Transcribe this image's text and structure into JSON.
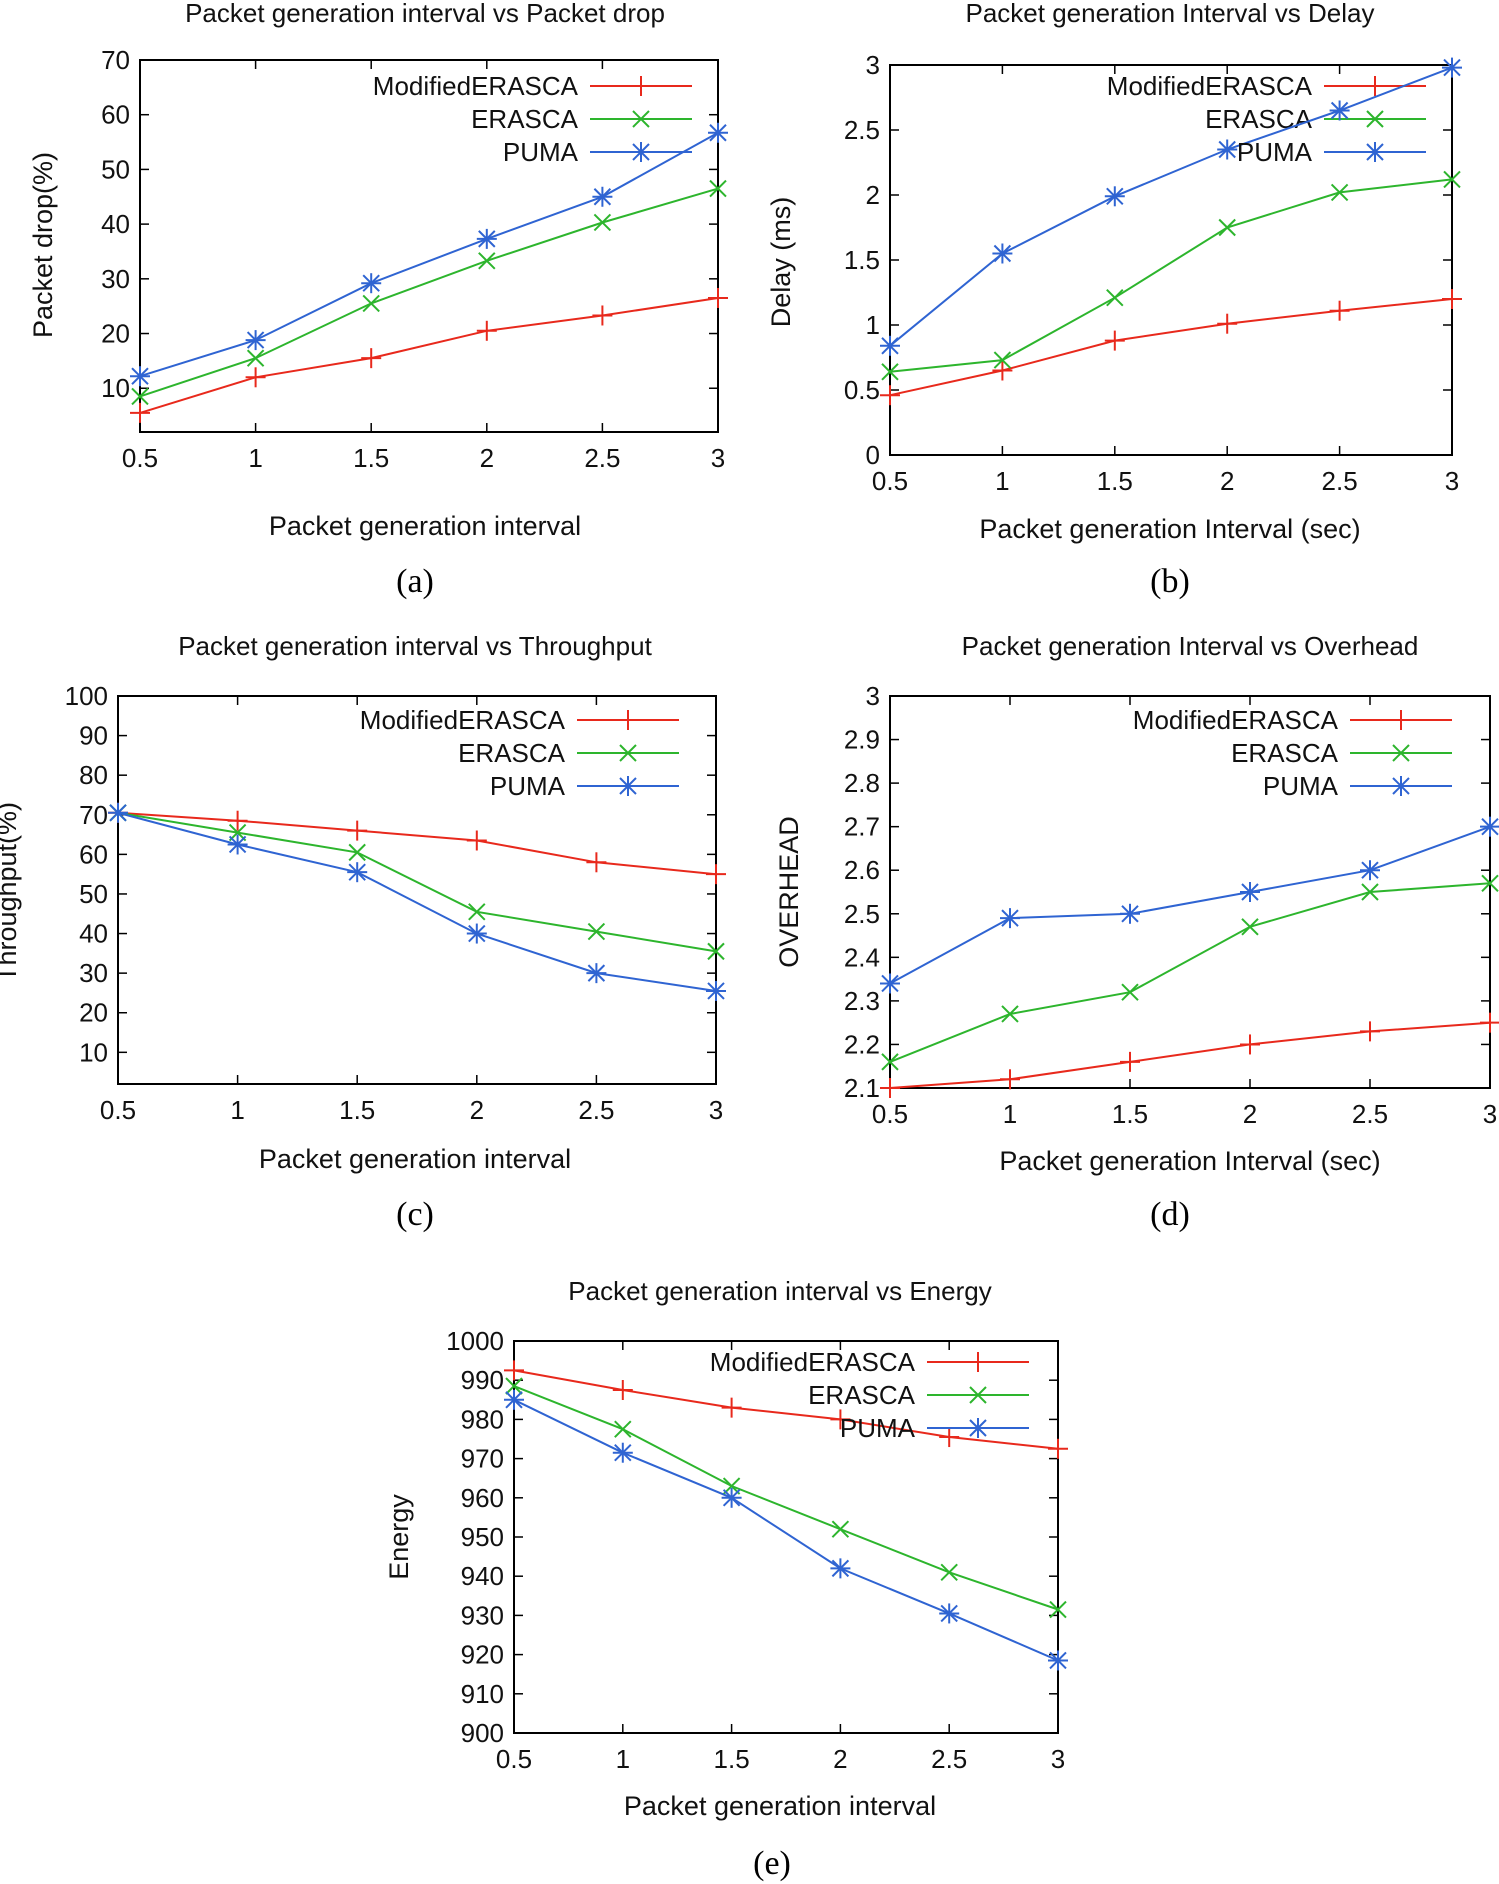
{
  "colors": {
    "ModifiedERASCA": "#e8291c",
    "ERASCA": "#2db52d",
    "PUMA": "#2f64d2"
  },
  "chart_data": [
    {
      "type": "line",
      "caption": "(a)",
      "title": "Packet generation interval vs Packet drop",
      "xlabel": "Packet generation interval",
      "ylabel": "Packet drop(%)",
      "xlim": [
        0.5,
        3
      ],
      "ylim": [
        2,
        70
      ],
      "xticks": [
        "0.5",
        "1",
        "1.5",
        "2",
        "2.5",
        "3"
      ],
      "yticks": [
        "10",
        "20",
        "30",
        "40",
        "50",
        "60",
        "70"
      ],
      "x": [
        0.5,
        1,
        1.5,
        2,
        2.5,
        3
      ],
      "series": [
        {
          "name": "ModifiedERASCA",
          "marker": "plus",
          "values": [
            5.5,
            12,
            15.5,
            20.5,
            23.3,
            26.5
          ]
        },
        {
          "name": "ERASCA",
          "marker": "x",
          "values": [
            8.5,
            15.5,
            25.5,
            33.3,
            40.3,
            46.5
          ]
        },
        {
          "name": "PUMA",
          "marker": "star",
          "values": [
            12.2,
            18.8,
            29.2,
            37.3,
            45,
            56.7
          ]
        }
      ]
    },
    {
      "type": "line",
      "caption": "(b)",
      "title": "Packet generation Interval vs Delay",
      "xlabel": "Packet generation Interval (sec)",
      "ylabel": "Delay (ms)",
      "xlim": [
        0.5,
        3
      ],
      "ylim": [
        0,
        3
      ],
      "xticks": [
        "0.5",
        "1",
        "1.5",
        "2",
        "2.5",
        "3"
      ],
      "yticks": [
        "0",
        "0.5",
        "1",
        "1.5",
        "2",
        "2.5",
        "3"
      ],
      "x": [
        0.5,
        1,
        1.5,
        2,
        2.5,
        3
      ],
      "series": [
        {
          "name": "ModifiedERASCA",
          "marker": "plus",
          "values": [
            0.46,
            0.65,
            0.88,
            1.01,
            1.11,
            1.2
          ]
        },
        {
          "name": "ERASCA",
          "marker": "x",
          "values": [
            0.64,
            0.73,
            1.21,
            1.75,
            2.02,
            2.12
          ]
        },
        {
          "name": "PUMA",
          "marker": "star",
          "values": [
            0.84,
            1.55,
            1.99,
            2.35,
            2.65,
            2.98
          ]
        }
      ]
    },
    {
      "type": "line",
      "caption": "(c)",
      "title": "Packet generation interval vs Throughput",
      "xlabel": "Packet generation interval",
      "ylabel": "Throughput(%)",
      "xlim": [
        0.5,
        3
      ],
      "ylim": [
        2,
        100
      ],
      "xticks": [
        "0.5",
        "1",
        "1.5",
        "2",
        "2.5",
        "3"
      ],
      "yticks": [
        "10",
        "20",
        "30",
        "40",
        "50",
        "60",
        "70",
        "80",
        "90",
        "100"
      ],
      "x": [
        0.5,
        1,
        1.5,
        2,
        2.5,
        3
      ],
      "series": [
        {
          "name": "ModifiedERASCA",
          "marker": "plus",
          "values": [
            70.5,
            68.5,
            66,
            63.5,
            58,
            55
          ]
        },
        {
          "name": "ERASCA",
          "marker": "x",
          "values": [
            70.5,
            65.5,
            60.5,
            45.5,
            40.5,
            35.5
          ]
        },
        {
          "name": "PUMA",
          "marker": "star",
          "values": [
            70.5,
            62.5,
            55.5,
            40,
            30,
            25.5
          ]
        }
      ]
    },
    {
      "type": "line",
      "caption": "(d)",
      "title": "Packet generation Interval vs Overhead",
      "xlabel": "Packet generation Interval (sec)",
      "ylabel": "OVERHEAD",
      "xlim": [
        0.5,
        3
      ],
      "ylim": [
        2.1,
        3
      ],
      "xticks": [
        "0.5",
        "1",
        "1.5",
        "2",
        "2.5",
        "3"
      ],
      "yticks": [
        "2.1",
        "2.2",
        "2.3",
        "2.4",
        "2.5",
        "2.6",
        "2.7",
        "2.8",
        "2.9",
        "3"
      ],
      "x": [
        0.5,
        1,
        1.5,
        2,
        2.5,
        3
      ],
      "series": [
        {
          "name": "ModifiedERASCA",
          "marker": "plus",
          "values": [
            2.1,
            2.12,
            2.16,
            2.2,
            2.23,
            2.25
          ]
        },
        {
          "name": "ERASCA",
          "marker": "x",
          "values": [
            2.16,
            2.27,
            2.32,
            2.47,
            2.55,
            2.57
          ]
        },
        {
          "name": "PUMA",
          "marker": "star",
          "values": [
            2.34,
            2.49,
            2.5,
            2.55,
            2.6,
            2.7
          ]
        }
      ]
    },
    {
      "type": "line",
      "caption": "(e)",
      "title": "Packet generation interval vs Energy",
      "xlabel": "Packet generation interval",
      "ylabel": "Energy",
      "xlim": [
        0.5,
        3
      ],
      "ylim": [
        900,
        1000
      ],
      "xticks": [
        "0.5",
        "1",
        "1.5",
        "2",
        "2.5",
        "3"
      ],
      "yticks": [
        "900",
        "910",
        "920",
        "930",
        "940",
        "950",
        "960",
        "970",
        "980",
        "990",
        "1000"
      ],
      "x": [
        0.5,
        1,
        1.5,
        2,
        2.5,
        3
      ],
      "series": [
        {
          "name": "ModifiedERASCA",
          "marker": "plus",
          "values": [
            992.5,
            987.5,
            983,
            980,
            975.5,
            972.5
          ]
        },
        {
          "name": "ERASCA",
          "marker": "x",
          "values": [
            988.5,
            977.5,
            963,
            952,
            941,
            931.5
          ]
        },
        {
          "name": "PUMA",
          "marker": "star",
          "values": [
            985,
            971.5,
            960,
            942,
            930.5,
            918.5
          ]
        }
      ]
    }
  ]
}
